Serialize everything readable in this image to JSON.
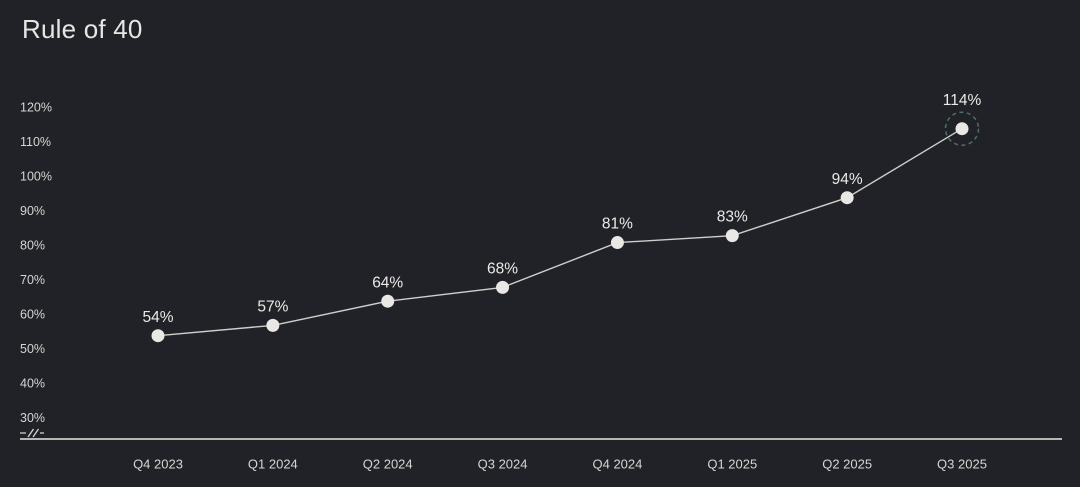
{
  "page": {
    "title": "Rule of 40"
  },
  "chart_data": {
    "type": "line",
    "title": "Rule of 40",
    "categories": [
      "Q4 2023",
      "Q1 2024",
      "Q2 2024",
      "Q3 2024",
      "Q4 2024",
      "Q1 2025",
      "Q2 2025",
      "Q3 2025"
    ],
    "values": [
      54,
      57,
      64,
      68,
      81,
      83,
      94,
      114
    ],
    "value_labels": [
      "54%",
      "57%",
      "64%",
      "68%",
      "81%",
      "83%",
      "94%",
      "114%"
    ],
    "y_ticks": [
      {
        "value": 120,
        "label": "120%"
      },
      {
        "value": 110,
        "label": "110%"
      },
      {
        "value": 100,
        "label": "100%"
      },
      {
        "value": 90,
        "label": "90%"
      },
      {
        "value": 80,
        "label": "80%"
      },
      {
        "value": 70,
        "label": "70%"
      },
      {
        "value": 60,
        "label": "60%"
      },
      {
        "value": 50,
        "label": "50%"
      },
      {
        "value": 40,
        "label": "40%"
      },
      {
        "value": 30,
        "label": "30%"
      }
    ],
    "ylim": [
      30,
      120
    ],
    "xlabel": "",
    "ylabel": "",
    "grid": false,
    "legend": null,
    "axis_break": true,
    "highlight_index": 7,
    "colors": {
      "background": "#202227",
      "title": "#e7e6e3",
      "tick_text": "#d6d5d2",
      "x_label_text": "#d6d5d2",
      "value_label_text": "#eceae7",
      "series_line": "#cfcecb",
      "point_fill": "#e9e8e5",
      "baseline": "#b7b6b3",
      "highlight_ring": "#4c7263"
    }
  }
}
